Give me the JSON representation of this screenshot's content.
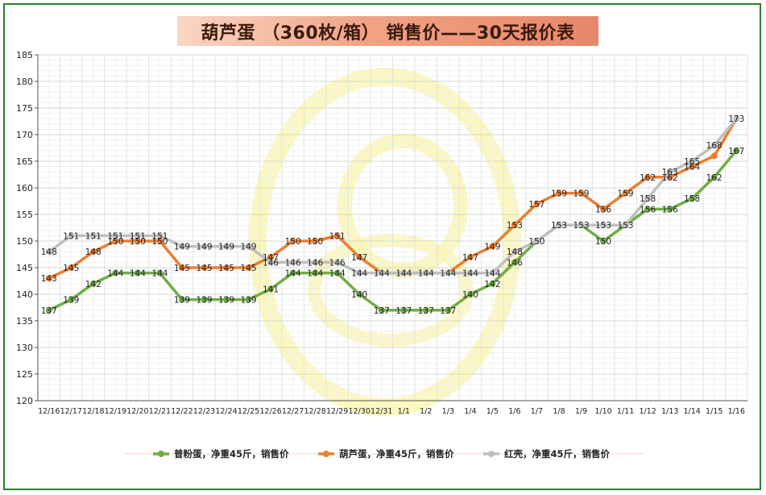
{
  "chart_data": {
    "type": "line",
    "title": "葫芦蛋 （360枚/箱） 销售价——30天报价表",
    "categories": [
      "12/16",
      "12/17",
      "12/18",
      "12/19",
      "12/20",
      "12/21",
      "12/22",
      "12/23",
      "12/24",
      "12/25",
      "12/26",
      "12/27",
      "12/28",
      "12/29",
      "12/30",
      "12/31",
      "1/1",
      "1/2",
      "1/3",
      "1/4",
      "1/5",
      "1/6",
      "1/7",
      "1/8",
      "1/9",
      "1/10",
      "1/11",
      "1/12",
      "1/13",
      "1/14",
      "1/15",
      "1/16"
    ],
    "ylim": [
      120,
      185
    ],
    "ytick_step": 5,
    "grid": true,
    "legend_position": "bottom",
    "series": [
      {
        "name": "普粉蛋，净重45斤，销售价",
        "color": "#70ad47",
        "values": [
          137,
          139,
          142,
          144,
          144,
          144,
          139,
          139,
          139,
          139,
          141,
          144,
          144,
          144,
          140,
          137,
          137,
          137,
          137,
          140,
          142,
          146,
          150,
          153,
          153,
          150,
          153,
          156,
          156,
          158,
          162,
          167
        ],
        "labels": [
          "137",
          "139",
          "142",
          "144",
          "144",
          "144",
          "139",
          "139",
          "139",
          "139",
          "141",
          "144",
          "144",
          "144",
          "140",
          "137",
          "137",
          "137",
          "137",
          "140",
          "142",
          "146",
          "",
          "",
          "",
          "150",
          "",
          "156",
          "156",
          "158",
          "162",
          "167"
        ]
      },
      {
        "name": "葫芦蛋，净重45斤，销售价",
        "color": "#ed7d31",
        "values": [
          143,
          145,
          148,
          150,
          150,
          150,
          145,
          145,
          145,
          145,
          147,
          150,
          150,
          151,
          147,
          144,
          144,
          144,
          144,
          147,
          149,
          153,
          157,
          159,
          159,
          156,
          159,
          162,
          162,
          164,
          166,
          173
        ],
        "labels": [
          "143",
          "145",
          "148",
          "150",
          "150",
          "150",
          "145",
          "145",
          "145",
          "145",
          "147",
          "150",
          "150",
          "151",
          "147",
          "",
          "",
          "",
          "",
          "147",
          "149",
          "153",
          "157",
          "159",
          "159",
          "156",
          "159",
          "162",
          "162",
          "164",
          "",
          ""
        ]
      },
      {
        "name": "红壳，净重45斤，销售价",
        "color": "#bfbfbf",
        "values": [
          148,
          151,
          151,
          151,
          151,
          151,
          149,
          149,
          149,
          149,
          146,
          146,
          146,
          146,
          144,
          144,
          144,
          144,
          144,
          144,
          144,
          148,
          150,
          153,
          153,
          153,
          153,
          158,
          163,
          165,
          168,
          173
        ],
        "labels": [
          "148",
          "151",
          "151",
          "151",
          "151",
          "151",
          "149",
          "149",
          "149",
          "149",
          "146",
          "146",
          "146",
          "146",
          "144",
          "144",
          "144",
          "144",
          "144",
          "144",
          "144",
          "148",
          "150",
          "153",
          "153",
          "153",
          "153",
          "158",
          "163",
          "165",
          "168",
          "173"
        ]
      }
    ]
  }
}
